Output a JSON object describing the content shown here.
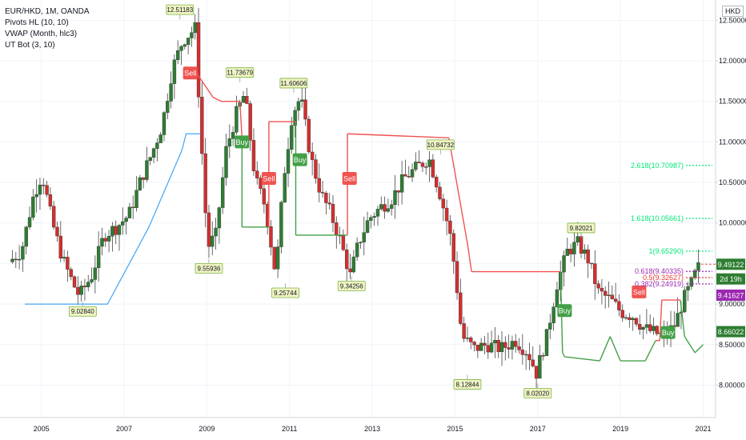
{
  "legend": {
    "symbol": "EUR/HKD, 1M, OANDA",
    "ind1": "Pivots HL (10, 10)",
    "ind2": "VWAP (Month, hlc3)",
    "ind3": "UT Bot (3, 10)"
  },
  "currency_button": "HKD",
  "colors": {
    "up": "#2e7d32",
    "down": "#d32f2f",
    "ema": "#ef5350",
    "stop": "#43a047",
    "vwap": "#42a5f5",
    "fib": "#00e676",
    "purple": "#9c27b0",
    "grid": "#f0f3fa"
  },
  "chart_data": {
    "type": "candlestick",
    "title": "EUR/HKD, 1M, OANDA",
    "xlim": [
      2004.0,
      2021.3
    ],
    "ylim": [
      7.6,
      12.75
    ],
    "x_ticks": [
      "2005",
      "2007",
      "2009",
      "2011",
      "2013",
      "2015",
      "2017",
      "2019",
      "2021"
    ],
    "y_ticks": [
      "8.00000",
      "8.50000",
      "9.00000",
      "9.50000",
      "10.00000",
      "10.50000",
      "11.00000",
      "11.50000",
      "12.00000",
      "12.50000"
    ],
    "anchors": [
      [
        2004.3,
        9.52
      ],
      [
        2004.6,
        9.65
      ],
      [
        2004.9,
        10.35
      ],
      [
        2005.1,
        10.6
      ],
      [
        2005.35,
        10.0
      ],
      [
        2005.6,
        9.55
      ],
      [
        2005.85,
        9.25
      ],
      [
        2006.0,
        9.1
      ],
      [
        2006.3,
        9.35
      ],
      [
        2006.6,
        9.85
      ],
      [
        2006.9,
        9.95
      ],
      [
        2007.2,
        10.1
      ],
      [
        2007.5,
        10.55
      ],
      [
        2007.75,
        10.85
      ],
      [
        2008.0,
        11.2
      ],
      [
        2008.25,
        11.9
      ],
      [
        2008.5,
        12.25
      ],
      [
        2008.8,
        12.4
      ],
      [
        2008.95,
        11.0
      ],
      [
        2009.1,
        9.7
      ],
      [
        2009.3,
        9.85
      ],
      [
        2009.55,
        10.9
      ],
      [
        2009.8,
        11.35
      ],
      [
        2010.0,
        11.6
      ],
      [
        2010.25,
        10.55
      ],
      [
        2010.5,
        10.2
      ],
      [
        2010.75,
        9.35
      ],
      [
        2010.95,
        10.6
      ],
      [
        2011.15,
        11.35
      ],
      [
        2011.35,
        11.55
      ],
      [
        2011.6,
        10.8
      ],
      [
        2011.85,
        10.35
      ],
      [
        2012.05,
        10.15
      ],
      [
        2012.3,
        9.8
      ],
      [
        2012.55,
        9.35
      ],
      [
        2012.75,
        9.75
      ],
      [
        2013.0,
        10.05
      ],
      [
        2013.3,
        10.2
      ],
      [
        2013.55,
        10.3
      ],
      [
        2013.85,
        10.55
      ],
      [
        2014.2,
        10.7
      ],
      [
        2014.45,
        10.8
      ],
      [
        2014.7,
        10.4
      ],
      [
        2014.95,
        9.9
      ],
      [
        2015.1,
        9.35
      ],
      [
        2015.25,
        8.6
      ],
      [
        2015.55,
        8.45
      ],
      [
        2015.85,
        8.5
      ],
      [
        2016.2,
        8.45
      ],
      [
        2016.55,
        8.55
      ],
      [
        2016.85,
        8.4
      ],
      [
        2017.05,
        8.15
      ],
      [
        2017.3,
        8.6
      ],
      [
        2017.55,
        9.25
      ],
      [
        2017.8,
        9.65
      ],
      [
        2018.05,
        9.75
      ],
      [
        2018.3,
        9.55
      ],
      [
        2018.55,
        9.15
      ],
      [
        2018.85,
        9.05
      ],
      [
        2019.1,
        8.9
      ],
      [
        2019.4,
        8.85
      ],
      [
        2019.65,
        8.7
      ],
      [
        2019.9,
        8.65
      ],
      [
        2020.15,
        8.6
      ],
      [
        2020.4,
        8.75
      ],
      [
        2020.6,
        9.05
      ],
      [
        2020.8,
        9.25
      ],
      [
        2020.95,
        9.45
      ]
    ],
    "ut_bot_trail": [
      [
        2008.45,
        11.85
      ],
      [
        2008.75,
        11.85
      ],
      [
        2009.15,
        11.55
      ],
      [
        2009.35,
        11.5
      ],
      [
        2009.8,
        11.5
      ],
      [
        2009.85,
        11.05
      ],
      [
        2009.85,
        9.95
      ],
      [
        2010.5,
        9.95
      ],
      [
        2010.5,
        11.25
      ],
      [
        2011.15,
        11.25
      ],
      [
        2011.15,
        9.85
      ],
      [
        2012.4,
        9.85
      ],
      [
        2012.4,
        11.1
      ],
      [
        2014.85,
        11.05
      ],
      [
        2015.3,
        9.75
      ],
      [
        2015.4,
        9.4
      ],
      [
        2017.55,
        9.4
      ],
      [
        2017.6,
        8.4
      ],
      [
        2017.65,
        8.35
      ],
      [
        2018.5,
        8.3
      ],
      [
        2018.75,
        8.6
      ],
      [
        2019.0,
        8.3
      ],
      [
        2019.6,
        8.3
      ],
      [
        2019.85,
        8.55
      ],
      [
        2019.95,
        8.55
      ],
      [
        2020.0,
        9.05
      ],
      [
        2020.45,
        9.05
      ],
      [
        2020.55,
        8.6
      ],
      [
        2020.8,
        8.4
      ],
      [
        2021.0,
        8.5
      ]
    ],
    "vwap": [
      [
        2004.6,
        9.0
      ],
      [
        2006.6,
        9.0
      ],
      [
        2007.6,
        9.95
      ],
      [
        2008.4,
        10.9
      ],
      [
        2008.5,
        11.1
      ],
      [
        2008.85,
        11.1
      ]
    ],
    "pivots": [
      {
        "x": 2008.35,
        "y": 12.51183,
        "label": "12.51183",
        "pos": "above"
      },
      {
        "x": 2009.8,
        "y": 11.73679,
        "label": "11.73679",
        "pos": "above"
      },
      {
        "x": 2011.1,
        "y": 11.60606,
        "label": "11.60606",
        "pos": "above"
      },
      {
        "x": 2014.65,
        "y": 10.84732,
        "label": "10.84732",
        "pos": "above"
      },
      {
        "x": 2018.05,
        "y": 9.82021,
        "label": "9.82021",
        "pos": "above"
      },
      {
        "x": 2009.05,
        "y": 9.55936,
        "label": "9.55936",
        "pos": "below"
      },
      {
        "x": 2010.9,
        "y": 9.25744,
        "label": "9.25744",
        "pos": "below"
      },
      {
        "x": 2012.5,
        "y": 9.34256,
        "label": "9.34256",
        "pos": "below"
      },
      {
        "x": 2006.0,
        "y": 9.0284,
        "label": "9.02840",
        "pos": "below"
      },
      {
        "x": 2015.3,
        "y": 8.12844,
        "label": "8.12844",
        "pos": "below"
      },
      {
        "x": 2017.0,
        "y": 8.0202,
        "label": "8.02020",
        "pos": "below"
      }
    ],
    "signals": [
      {
        "x": 2008.6,
        "y": 11.85,
        "type": "sell",
        "label": "Sell"
      },
      {
        "x": 2009.85,
        "y": 11.0,
        "type": "buy",
        "label": "Buy"
      },
      {
        "x": 2010.5,
        "y": 10.55,
        "type": "sell",
        "label": "Sell"
      },
      {
        "x": 2011.25,
        "y": 10.78,
        "type": "buy",
        "label": "Buy"
      },
      {
        "x": 2012.45,
        "y": 10.55,
        "type": "sell",
        "label": "Sell"
      },
      {
        "x": 2017.65,
        "y": 8.92,
        "type": "buy",
        "label": "Buy"
      },
      {
        "x": 2019.45,
        "y": 9.15,
        "type": "sell",
        "label": "Sell"
      },
      {
        "x": 2020.15,
        "y": 8.65,
        "type": "buy",
        "label": "Buy"
      }
    ],
    "fib_levels": [
      {
        "label": "2.618(10.70987)",
        "value": 10.70987,
        "color": "#00e676"
      },
      {
        "label": "1.618(10.05661)",
        "value": 10.05661,
        "color": "#00e676"
      },
      {
        "label": "1(9.65290)",
        "value": 9.6529,
        "color": "#00e676"
      },
      {
        "label": "0.618(9.40335)",
        "value": 9.40335,
        "color": "#9c27b0"
      },
      {
        "label": "0.5(9.32627)",
        "value": 9.32627,
        "color": "#e53935"
      },
      {
        "label": "0.382(9.24919)",
        "value": 9.24919,
        "color": "#9c27b0"
      }
    ],
    "price_tags": [
      {
        "label": "9.49122",
        "value": 9.49122,
        "color": "#2e7d32"
      },
      {
        "label": "2d 19h",
        "value": 9.31,
        "color": "#2e7d32"
      },
      {
        "label": "9.41627",
        "value": 9.11,
        "color": "#9c27b0"
      },
      {
        "label": "8.66022",
        "value": 8.66022,
        "color": "#2e7d32"
      }
    ]
  }
}
